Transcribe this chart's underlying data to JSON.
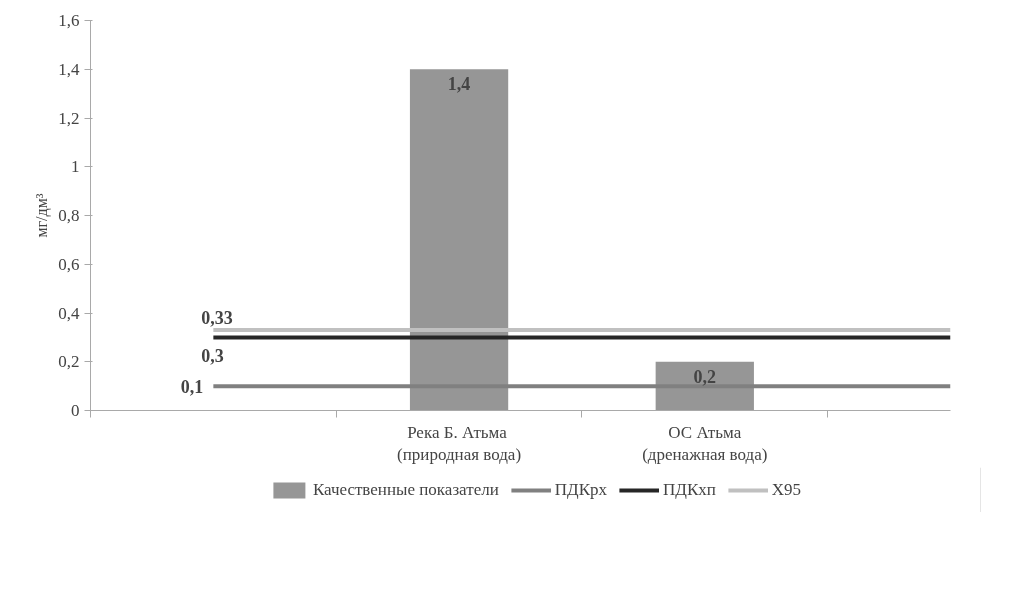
{
  "chart_data": {
    "type": "bar",
    "ylabel": "мг/дм³",
    "categories": [
      null,
      "Река  Б. Атьма\n(природная вода)",
      "ОС Атьма\n(дренажная вода)",
      null
    ],
    "series": [
      {
        "name": "Качественные показатели",
        "type": "bar",
        "color": "#969696",
        "values": [
          null,
          1.4,
          0.2,
          null
        ],
        "value_labels": [
          null,
          "1,4",
          "0,2",
          null
        ]
      },
      {
        "name": "ПДКрх",
        "type": "line",
        "color": "#808080",
        "values": [
          0.1,
          0.1,
          0.1,
          0.1
        ],
        "value_labels": [
          "0,1",
          null,
          null,
          null
        ]
      },
      {
        "name": "ПДКхп",
        "type": "line",
        "color": "#262626",
        "values": [
          0.3,
          0.3,
          0.3,
          0.3
        ],
        "value_labels": [
          "0,3",
          null,
          null,
          null
        ]
      },
      {
        "name": "X95",
        "type": "line",
        "color": "#c0c0c0",
        "values": [
          0.33,
          0.33,
          0.33,
          0.33
        ],
        "value_labels": [
          "0,33",
          null,
          null,
          null
        ]
      }
    ],
    "ylim": [
      0,
      1.6
    ],
    "yticks": [
      0,
      {
        "value": 0.2,
        "label": "0,2"
      },
      {
        "value": 0.4,
        "label": "0,4"
      },
      {
        "value": 0.6,
        "label": "0,6"
      },
      {
        "value": 0.8,
        "label": "0,8"
      },
      1,
      {
        "value": 1.2,
        "label": "1,2"
      },
      {
        "value": 1.4,
        "label": "1,4"
      },
      {
        "value": 1.6,
        "label": "1,6"
      }
    ],
    "grid": false,
    "legend": "bottom"
  }
}
